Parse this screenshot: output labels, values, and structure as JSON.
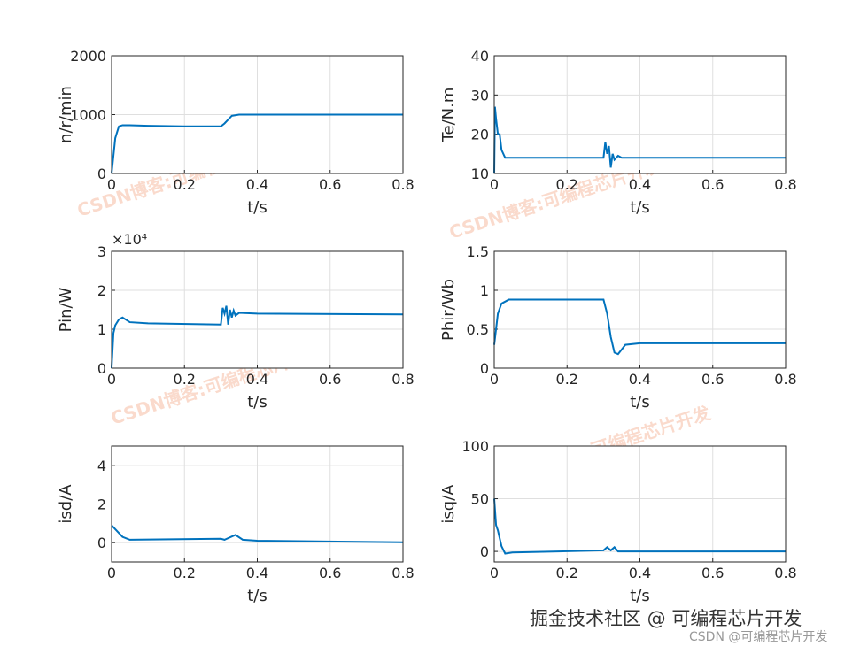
{
  "chart_data": [
    {
      "type": "line",
      "ylabel": "n/r/min",
      "xlabel": "t/s",
      "xlim": [
        0,
        0.8
      ],
      "xticks": [
        0,
        0.2,
        0.4,
        0.6,
        0.8
      ],
      "ylim": [
        0,
        2000
      ],
      "yticks": [
        0,
        1000,
        2000
      ],
      "grid": true,
      "x": [
        0,
        0.005,
        0.01,
        0.02,
        0.03,
        0.05,
        0.1,
        0.2,
        0.3,
        0.31,
        0.33,
        0.35,
        0.4,
        0.6,
        0.8
      ],
      "series": [
        {
          "color": "#0072bd",
          "values": [
            0,
            300,
            600,
            800,
            820,
            820,
            810,
            800,
            800,
            850,
            980,
            1000,
            1000,
            1000,
            1000
          ]
        }
      ]
    },
    {
      "type": "line",
      "ylabel": "Te/N.m",
      "xlabel": "t/s",
      "xlim": [
        0,
        0.8
      ],
      "xticks": [
        0,
        0.2,
        0.4,
        0.6,
        0.8
      ],
      "ylim": [
        10,
        40
      ],
      "yticks": [
        10,
        20,
        30,
        40
      ],
      "grid": true,
      "x": [
        0,
        0.002,
        0.005,
        0.01,
        0.015,
        0.02,
        0.03,
        0.1,
        0.3,
        0.305,
        0.31,
        0.315,
        0.32,
        0.325,
        0.33,
        0.34,
        0.35,
        0.4,
        0.6,
        0.8
      ],
      "series": [
        {
          "color": "#0072bd",
          "values": [
            10,
            27,
            24,
            20,
            20,
            16,
            14,
            14,
            14,
            18,
            15,
            17,
            11.5,
            15,
            13.5,
            14.5,
            14,
            14,
            14,
            14
          ]
        }
      ]
    },
    {
      "type": "line",
      "ylabel": "Pin/W",
      "xlabel": "t/s",
      "y_exponent_label": "×10⁴",
      "xlim": [
        0,
        0.8
      ],
      "xticks": [
        0,
        0.2,
        0.4,
        0.6,
        0.8
      ],
      "ylim": [
        0,
        30000
      ],
      "yticks": [
        0,
        {
          "value": 10000,
          "label": "1"
        },
        {
          "value": 20000,
          "label": "2"
        },
        {
          "value": 30000,
          "label": "3"
        }
      ],
      "grid": true,
      "x": [
        0,
        0.005,
        0.01,
        0.02,
        0.03,
        0.05,
        0.1,
        0.3,
        0.305,
        0.31,
        0.315,
        0.32,
        0.325,
        0.33,
        0.335,
        0.34,
        0.35,
        0.4,
        0.8
      ],
      "series": [
        {
          "color": "#0072bd",
          "values": [
            0,
            9000,
            11000,
            12500,
            13000,
            11800,
            11500,
            11200,
            15500,
            14000,
            16000,
            11200,
            15000,
            13000,
            14800,
            13500,
            14200,
            14000,
            13800
          ]
        }
      ]
    },
    {
      "type": "line",
      "ylabel": "Phir/Wb",
      "xlabel": "t/s",
      "xlim": [
        0,
        0.8
      ],
      "xticks": [
        0,
        0.2,
        0.4,
        0.6,
        0.8
      ],
      "ylim": [
        0,
        1.5
      ],
      "yticks": [
        0,
        0.5,
        1,
        1.5
      ],
      "grid": true,
      "x": [
        0,
        0.01,
        0.02,
        0.04,
        0.1,
        0.3,
        0.31,
        0.32,
        0.33,
        0.34,
        0.36,
        0.4,
        0.8
      ],
      "series": [
        {
          "color": "#0072bd",
          "values": [
            0.3,
            0.7,
            0.83,
            0.88,
            0.88,
            0.88,
            0.7,
            0.4,
            0.2,
            0.18,
            0.3,
            0.32,
            0.32
          ]
        }
      ]
    },
    {
      "type": "line",
      "ylabel": "isd/A",
      "xlabel": "t/s",
      "xlim": [
        0,
        0.8
      ],
      "xticks": [
        0,
        0.2,
        0.4,
        0.6,
        0.8
      ],
      "ylim": [
        -1,
        5
      ],
      "yticks": [
        0,
        2,
        4
      ],
      "grid": true,
      "x": [
        0,
        0.01,
        0.03,
        0.05,
        0.3,
        0.31,
        0.34,
        0.36,
        0.4,
        0.8
      ],
      "series": [
        {
          "color": "#0072bd",
          "values": [
            0.9,
            0.7,
            0.3,
            0.15,
            0.2,
            0.15,
            0.4,
            0.15,
            0.1,
            0.02
          ]
        }
      ]
    },
    {
      "type": "line",
      "ylabel": "isq/A",
      "xlabel": "t/s",
      "xlim": [
        0,
        0.8
      ],
      "xticks": [
        0,
        0.2,
        0.4,
        0.6,
        0.8
      ],
      "ylim": [
        -10,
        100
      ],
      "yticks": [
        0,
        50,
        100
      ],
      "grid": true,
      "x": [
        0,
        0.005,
        0.01,
        0.02,
        0.03,
        0.05,
        0.3,
        0.31,
        0.32,
        0.33,
        0.34,
        0.35,
        0.4,
        0.8
      ],
      "series": [
        {
          "color": "#0072bd",
          "values": [
            50,
            25,
            20,
            5,
            -2,
            -1,
            1,
            4,
            1,
            4,
            0,
            0,
            0,
            0
          ]
        }
      ]
    }
  ],
  "watermarks": [
    "CSDN博客:可编程芯片开发",
    "CSDN博客:可编程芯片开发",
    "CSDN博客:可编程芯片开发",
    "CSDN博客:可编程芯片开发"
  ],
  "credit": "掘金技术社区 @ 可编程芯片开发",
  "credit_small": "CSDN @可编程芯片开发"
}
